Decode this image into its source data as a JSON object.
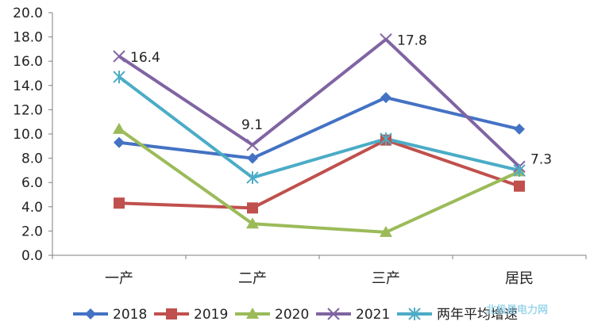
{
  "chart_data": {
    "type": "line",
    "categories": [
      "一产",
      "二产",
      "三产",
      "居民"
    ],
    "ylim": [
      0,
      20
    ],
    "yticks": [
      "0.0",
      "2.0",
      "4.0",
      "6.0",
      "8.0",
      "10.0",
      "12.0",
      "14.0",
      "16.0",
      "18.0",
      "20.0"
    ],
    "series": [
      {
        "name": "2018",
        "values": [
          9.3,
          8.0,
          13.0,
          10.4
        ],
        "color": "#4472C4",
        "marker": "diamond"
      },
      {
        "name": "2019",
        "values": [
          4.3,
          3.9,
          9.5,
          5.7
        ],
        "color": "#C0504D",
        "marker": "square"
      },
      {
        "name": "2020",
        "values": [
          10.4,
          2.6,
          1.9,
          6.9
        ],
        "color": "#9BBB59",
        "marker": "triangle"
      },
      {
        "name": "2021",
        "values": [
          16.4,
          9.1,
          17.8,
          7.3
        ],
        "color": "#8064A2",
        "marker": "x",
        "labels": [
          "16.4",
          "9.1",
          "17.8",
          "7.3"
        ]
      },
      {
        "name": "两年平均增速",
        "values": [
          14.7,
          6.4,
          9.6,
          7.0
        ],
        "color": "#4BACC6",
        "marker": "star"
      }
    ],
    "grid": false,
    "legend": "bottom"
  },
  "watermark": "北极星电力网"
}
